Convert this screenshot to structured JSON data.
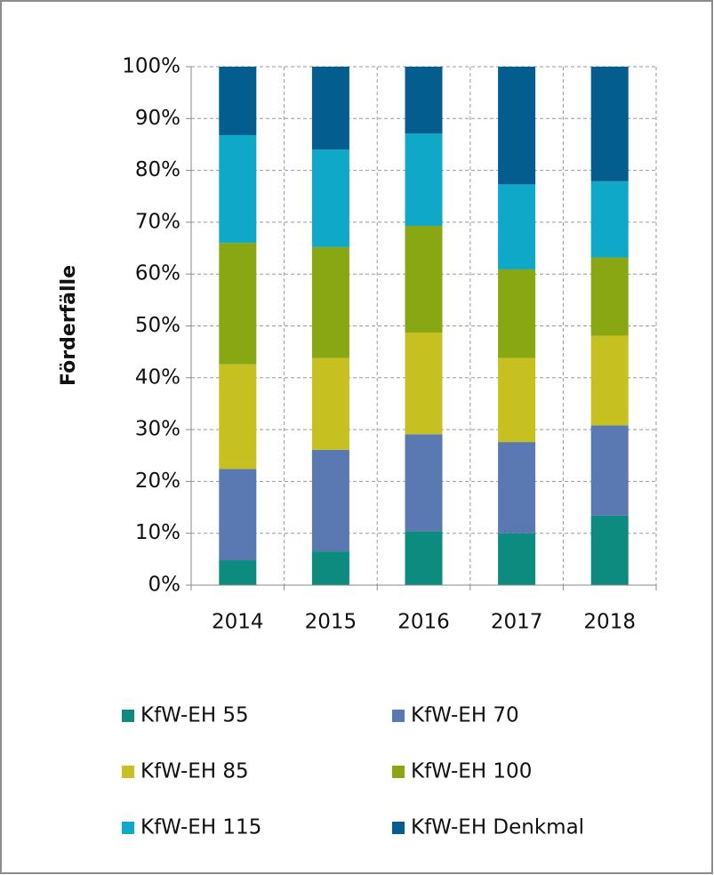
{
  "chart_data": {
    "type": "stacked_bar",
    "y_label": "Förderfälle",
    "categories": [
      "2014",
      "2015",
      "2016",
      "2017",
      "2018"
    ],
    "series": [
      {
        "name": "KfW-EH 55",
        "color": "#0e8b7f",
        "values": [
          4.8,
          6.5,
          10.4,
          10.0,
          13.4
        ]
      },
      {
        "name": "KfW-EH 70",
        "color": "#5a78b2",
        "values": [
          17.6,
          19.6,
          18.7,
          17.6,
          17.4
        ]
      },
      {
        "name": "KfW-EH 85",
        "color": "#c6c020",
        "values": [
          20.2,
          17.7,
          19.6,
          16.2,
          17.3
        ]
      },
      {
        "name": "KfW-EH 100",
        "color": "#88a713",
        "values": [
          23.4,
          21.4,
          20.6,
          17.1,
          15.1
        ]
      },
      {
        "name": "KfW-EH 115",
        "color": "#0fa8c8",
        "values": [
          20.8,
          18.8,
          17.8,
          16.4,
          14.7
        ]
      },
      {
        "name": "KfW-EH Denkmal",
        "color": "#035d8f",
        "values": [
          13.2,
          16.0,
          12.9,
          22.7,
          22.1
        ]
      }
    ],
    "ylim": [
      0,
      100
    ],
    "yticks": [
      {
        "value": 0,
        "label": "0%"
      },
      {
        "value": 10,
        "label": "10%"
      },
      {
        "value": 20,
        "label": "20%"
      },
      {
        "value": 30,
        "label": "30%"
      },
      {
        "value": 40,
        "label": "40%"
      },
      {
        "value": 50,
        "label": "50%"
      },
      {
        "value": 60,
        "label": "60%"
      },
      {
        "value": 70,
        "label": "70%"
      },
      {
        "value": 80,
        "label": "80%"
      },
      {
        "value": 90,
        "label": "90%"
      },
      {
        "value": 100,
        "label": "100%"
      }
    ],
    "grid": true
  }
}
